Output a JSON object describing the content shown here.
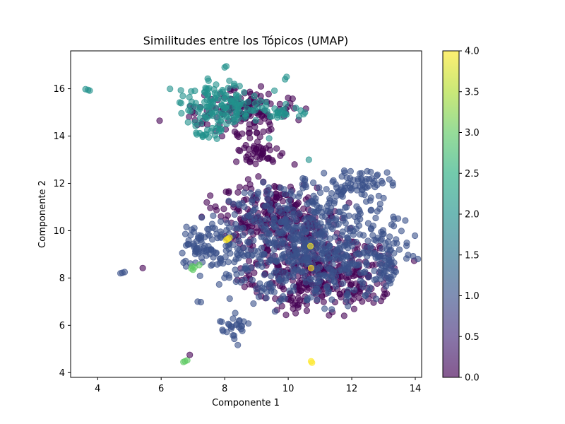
{
  "chart_data": {
    "type": "scatter",
    "title": "Similitudes entre los Tópicos (UMAP)",
    "xlabel": "Componente 1",
    "ylabel": "Componente 2",
    "xlim": [
      3.15,
      14.2
    ],
    "ylim": [
      3.8,
      17.6
    ],
    "xticks": [
      "4",
      "6",
      "8",
      "10",
      "12",
      "14"
    ],
    "yticks": [
      "4",
      "6",
      "8",
      "10",
      "12",
      "14",
      "16"
    ],
    "grid": false,
    "colormap": "viridis",
    "point_alpha": 0.6,
    "colorbar": {
      "range": [
        0.0,
        4.0
      ],
      "ticks": [
        "0.0",
        "0.5",
        "1.0",
        "1.5",
        "2.0",
        "2.5",
        "3.0",
        "3.5",
        "4.0"
      ]
    },
    "clusters": [
      {
        "category": 0,
        "cx": 11.0,
        "cy": 8.2,
        "rx": 2.3,
        "ry": 1.7
      },
      {
        "category": 0,
        "cx": 9.6,
        "cy": 10.6,
        "rx": 2.0,
        "ry": 1.4
      },
      {
        "category": 1,
        "cx": 10.7,
        "cy": 9.5,
        "rx": 2.9,
        "ry": 2.6
      },
      {
        "category": 1,
        "cx": 7.4,
        "cy": 9.3,
        "rx": 0.9,
        "ry": 1.0
      },
      {
        "category": 1,
        "cx": 8.3,
        "cy": 5.9,
        "rx": 0.5,
        "ry": 0.6
      },
      {
        "category": 1,
        "cx": 12.3,
        "cy": 12.1,
        "rx": 1.0,
        "ry": 0.5
      },
      {
        "category": 1,
        "cx": 13.2,
        "cy": 8.6,
        "rx": 0.4,
        "ry": 0.9
      },
      {
        "category": 0,
        "cx": 8.6,
        "cy": 15.0,
        "rx": 1.6,
        "ry": 1.0
      },
      {
        "category": 2,
        "cx": 7.8,
        "cy": 15.3,
        "rx": 1.4,
        "ry": 1.1
      },
      {
        "category": 2,
        "cx": 9.7,
        "cy": 15.0,
        "rx": 0.8,
        "ry": 0.4
      },
      {
        "category": 2,
        "cx": 7.4,
        "cy": 14.1,
        "rx": 0.5,
        "ry": 0.3
      },
      {
        "category": 0,
        "cx": 9.0,
        "cy": 13.3,
        "rx": 0.8,
        "ry": 0.6
      }
    ],
    "extra_points": [
      {
        "x": 3.7,
        "y": 15.95,
        "category": 2
      },
      {
        "x": 3.62,
        "y": 15.98,
        "category": 2
      },
      {
        "x": 3.75,
        "y": 15.92,
        "category": 2
      },
      {
        "x": 4.78,
        "y": 8.22,
        "category": 1
      },
      {
        "x": 4.85,
        "y": 8.25,
        "category": 1
      },
      {
        "x": 4.72,
        "y": 8.2,
        "category": 1
      },
      {
        "x": 5.42,
        "y": 8.42,
        "category": 0
      },
      {
        "x": 6.75,
        "y": 4.48,
        "category": 3
      },
      {
        "x": 6.82,
        "y": 4.52,
        "category": 3
      },
      {
        "x": 6.7,
        "y": 4.45,
        "category": 3
      },
      {
        "x": 6.9,
        "y": 4.75,
        "category": 0
      },
      {
        "x": 10.72,
        "y": 4.48,
        "category": 4
      },
      {
        "x": 10.75,
        "y": 4.42,
        "category": 4
      },
      {
        "x": 8.1,
        "y": 9.65,
        "category": 4
      },
      {
        "x": 8.15,
        "y": 9.7,
        "category": 4
      },
      {
        "x": 8.05,
        "y": 9.6,
        "category": 4
      },
      {
        "x": 10.72,
        "y": 8.42,
        "category": 4
      },
      {
        "x": 10.7,
        "y": 9.35,
        "category": 4
      },
      {
        "x": 6.95,
        "y": 8.4,
        "category": 3
      },
      {
        "x": 7.0,
        "y": 8.35,
        "category": 3
      },
      {
        "x": 7.05,
        "y": 8.45,
        "category": 3
      },
      {
        "x": 6.98,
        "y": 8.5,
        "category": 3
      },
      {
        "x": 7.2,
        "y": 8.55,
        "category": 3
      },
      {
        "x": 7.15,
        "y": 7.0,
        "category": 1
      },
      {
        "x": 7.25,
        "y": 6.98,
        "category": 1
      },
      {
        "x": 9.95,
        "y": 16.5,
        "category": 2
      },
      {
        "x": 9.9,
        "y": 16.4,
        "category": 2
      },
      {
        "x": 8.0,
        "y": 16.9,
        "category": 2
      },
      {
        "x": 8.05,
        "y": 16.95,
        "category": 2
      },
      {
        "x": 10.65,
        "y": 13.0,
        "category": 2
      },
      {
        "x": 9.4,
        "y": 13.9,
        "category": 2
      },
      {
        "x": 8.8,
        "y": 12.9,
        "category": 0
      },
      {
        "x": 10.2,
        "y": 12.8,
        "category": 0
      }
    ]
  }
}
